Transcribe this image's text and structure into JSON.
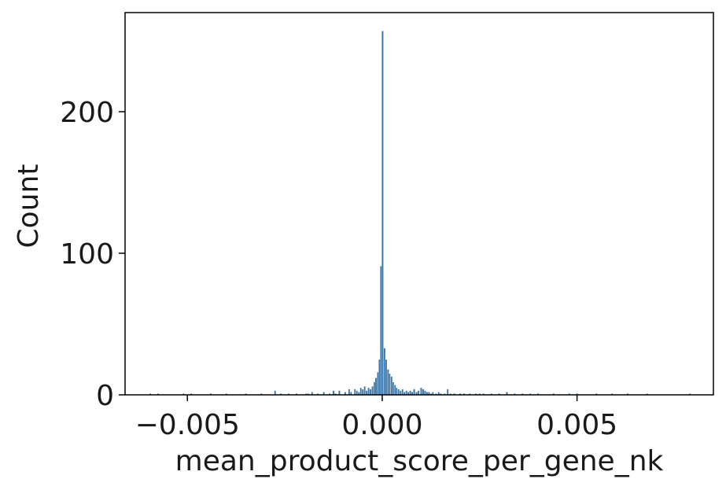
{
  "chart_data": {
    "type": "bar",
    "xlabel": "mean_product_score_per_gene_nk",
    "ylabel": "Count",
    "xlim": [
      -0.0066,
      0.0085
    ],
    "ylim": [
      0,
      270
    ],
    "x_ticks": [
      {
        "value": -0.005,
        "label": "−0.005"
      },
      {
        "value": 0.0,
        "label": "0.000"
      },
      {
        "value": 0.005,
        "label": "0.005"
      }
    ],
    "y_ticks": [
      {
        "value": 0,
        "label": "0"
      },
      {
        "value": 100,
        "label": "100"
      },
      {
        "value": 200,
        "label": "200"
      }
    ],
    "grid": false,
    "bar_color": "#3a75a6",
    "bar_edge_color": "#ffffff",
    "bin_width": 4.46e-05,
    "bins": [
      {
        "x": -0.00595,
        "count": 1
      },
      {
        "x": -0.00575,
        "count": 1
      },
      {
        "x": -0.0051,
        "count": 1
      },
      {
        "x": -0.0049,
        "count": 1
      },
      {
        "x": -0.0044,
        "count": 1
      },
      {
        "x": -0.004,
        "count": 1
      },
      {
        "x": -0.0035,
        "count": 1
      },
      {
        "x": -0.0031,
        "count": 1
      },
      {
        "x": -0.00275,
        "count": 3
      },
      {
        "x": -0.0026,
        "count": 1
      },
      {
        "x": -0.0024,
        "count": 1
      },
      {
        "x": -0.0022,
        "count": 1
      },
      {
        "x": -0.00195,
        "count": 1
      },
      {
        "x": -0.0019,
        "count": 1
      },
      {
        "x": -0.0018,
        "count": 2
      },
      {
        "x": -0.00165,
        "count": 1
      },
      {
        "x": -0.0015,
        "count": 2
      },
      {
        "x": -0.00135,
        "count": 1
      },
      {
        "x": -0.00125,
        "count": 3
      },
      {
        "x": -0.0012,
        "count": 1
      },
      {
        "x": -0.0011,
        "count": 3
      },
      {
        "x": -0.00095,
        "count": 2
      },
      {
        "x": -0.00085,
        "count": 4
      },
      {
        "x": -0.0008,
        "count": 2
      },
      {
        "x": -0.0007,
        "count": 4
      },
      {
        "x": -0.00065,
        "count": 3
      },
      {
        "x": -0.0006,
        "count": 2
      },
      {
        "x": -0.00055,
        "count": 5
      },
      {
        "x": -0.0005,
        "count": 4
      },
      {
        "x": -0.00045,
        "count": 6
      },
      {
        "x": -0.0004,
        "count": 3
      },
      {
        "x": -0.00035,
        "count": 5
      },
      {
        "x": -0.0003,
        "count": 4
      },
      {
        "x": -0.00025,
        "count": 6
      },
      {
        "x": -0.0002,
        "count": 9
      },
      {
        "x": -0.00016,
        "count": 12
      },
      {
        "x": -0.00011,
        "count": 16
      },
      {
        "x": -7e-05,
        "count": 25
      },
      {
        "x": -3e-05,
        "count": 91
      },
      {
        "x": 1e-05,
        "count": 257
      },
      {
        "x": 6e-05,
        "count": 33
      },
      {
        "x": 0.0001,
        "count": 25
      },
      {
        "x": 0.00015,
        "count": 18
      },
      {
        "x": 0.00019,
        "count": 15
      },
      {
        "x": 0.00024,
        "count": 13
      },
      {
        "x": 0.00028,
        "count": 9
      },
      {
        "x": 0.00033,
        "count": 7
      },
      {
        "x": 0.00037,
        "count": 5
      },
      {
        "x": 0.00042,
        "count": 4
      },
      {
        "x": 0.00047,
        "count": 3
      },
      {
        "x": 0.00052,
        "count": 4
      },
      {
        "x": 0.00057,
        "count": 2
      },
      {
        "x": 0.00062,
        "count": 3
      },
      {
        "x": 0.00067,
        "count": 2
      },
      {
        "x": 0.00072,
        "count": 3
      },
      {
        "x": 0.00077,
        "count": 2
      },
      {
        "x": 0.00082,
        "count": 4
      },
      {
        "x": 0.00088,
        "count": 2
      },
      {
        "x": 0.00093,
        "count": 3
      },
      {
        "x": 0.001,
        "count": 5
      },
      {
        "x": 0.00105,
        "count": 4
      },
      {
        "x": 0.0011,
        "count": 3
      },
      {
        "x": 0.00115,
        "count": 2
      },
      {
        "x": 0.0012,
        "count": 2
      },
      {
        "x": 0.00125,
        "count": 1
      },
      {
        "x": 0.0013,
        "count": 2
      },
      {
        "x": 0.00138,
        "count": 1
      },
      {
        "x": 0.00145,
        "count": 2
      },
      {
        "x": 0.0015,
        "count": 1
      },
      {
        "x": 0.0016,
        "count": 1
      },
      {
        "x": 0.00168,
        "count": 4
      },
      {
        "x": 0.00175,
        "count": 1
      },
      {
        "x": 0.00185,
        "count": 1
      },
      {
        "x": 0.002,
        "count": 1
      },
      {
        "x": 0.0021,
        "count": 1
      },
      {
        "x": 0.00225,
        "count": 1
      },
      {
        "x": 0.0024,
        "count": 1
      },
      {
        "x": 0.0025,
        "count": 1
      },
      {
        "x": 0.0026,
        "count": 1
      },
      {
        "x": 0.0028,
        "count": 1
      },
      {
        "x": 0.003,
        "count": 1
      },
      {
        "x": 0.0032,
        "count": 2
      },
      {
        "x": 0.0034,
        "count": 1
      },
      {
        "x": 0.0036,
        "count": 1
      },
      {
        "x": 0.0038,
        "count": 1
      },
      {
        "x": 0.004,
        "count": 1
      },
      {
        "x": 0.0044,
        "count": 1
      },
      {
        "x": 0.0048,
        "count": 1
      },
      {
        "x": 0.005,
        "count": 1
      },
      {
        "x": 0.0055,
        "count": 1
      },
      {
        "x": 0.0059,
        "count": 1
      },
      {
        "x": 0.0063,
        "count": 1
      },
      {
        "x": 0.0068,
        "count": 1
      },
      {
        "x": 0.0079,
        "count": 1
      }
    ]
  }
}
